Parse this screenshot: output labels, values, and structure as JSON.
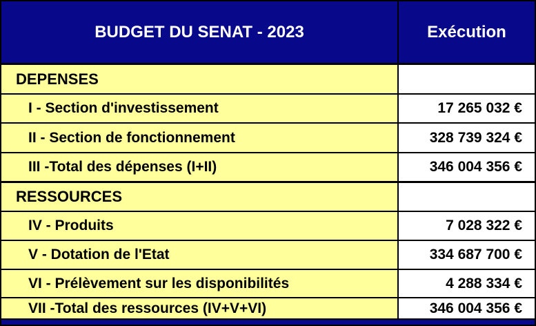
{
  "header": {
    "title": "BUDGET DU SENAT - 2023",
    "value_column": "Exécution"
  },
  "rows": [
    {
      "label": "DEPENSES",
      "value": "",
      "type": "section"
    },
    {
      "label": "I - Section d'investissement",
      "value": "17 265 032 €",
      "type": "item"
    },
    {
      "label": "II - Section de fonctionnement",
      "value": "328 739 324 €",
      "type": "item"
    },
    {
      "label": "III -Total des dépenses (I+II)",
      "value": "346 004 356 €",
      "type": "item"
    },
    {
      "label": "RESSOURCES",
      "value": "",
      "type": "section"
    },
    {
      "label": "IV - Produits",
      "value": "7 028 322 €",
      "type": "item"
    },
    {
      "label": "V - Dotation de l'Etat",
      "value": "334 687 700 €",
      "type": "item"
    },
    {
      "label": "VI - Prélèvement sur les disponibilités",
      "value": "4 288 334 €",
      "type": "item"
    },
    {
      "label": "VII -Total des ressources (IV+V+VI)",
      "value": "346 004 356 €",
      "type": "item"
    }
  ],
  "colors": {
    "header_bg": "#08088B",
    "row_bg": "#FFFF9C",
    "value_bg": "#FFFFFF",
    "border": "#000000",
    "header_text": "#FFFFFF",
    "row_text": "#000000"
  }
}
